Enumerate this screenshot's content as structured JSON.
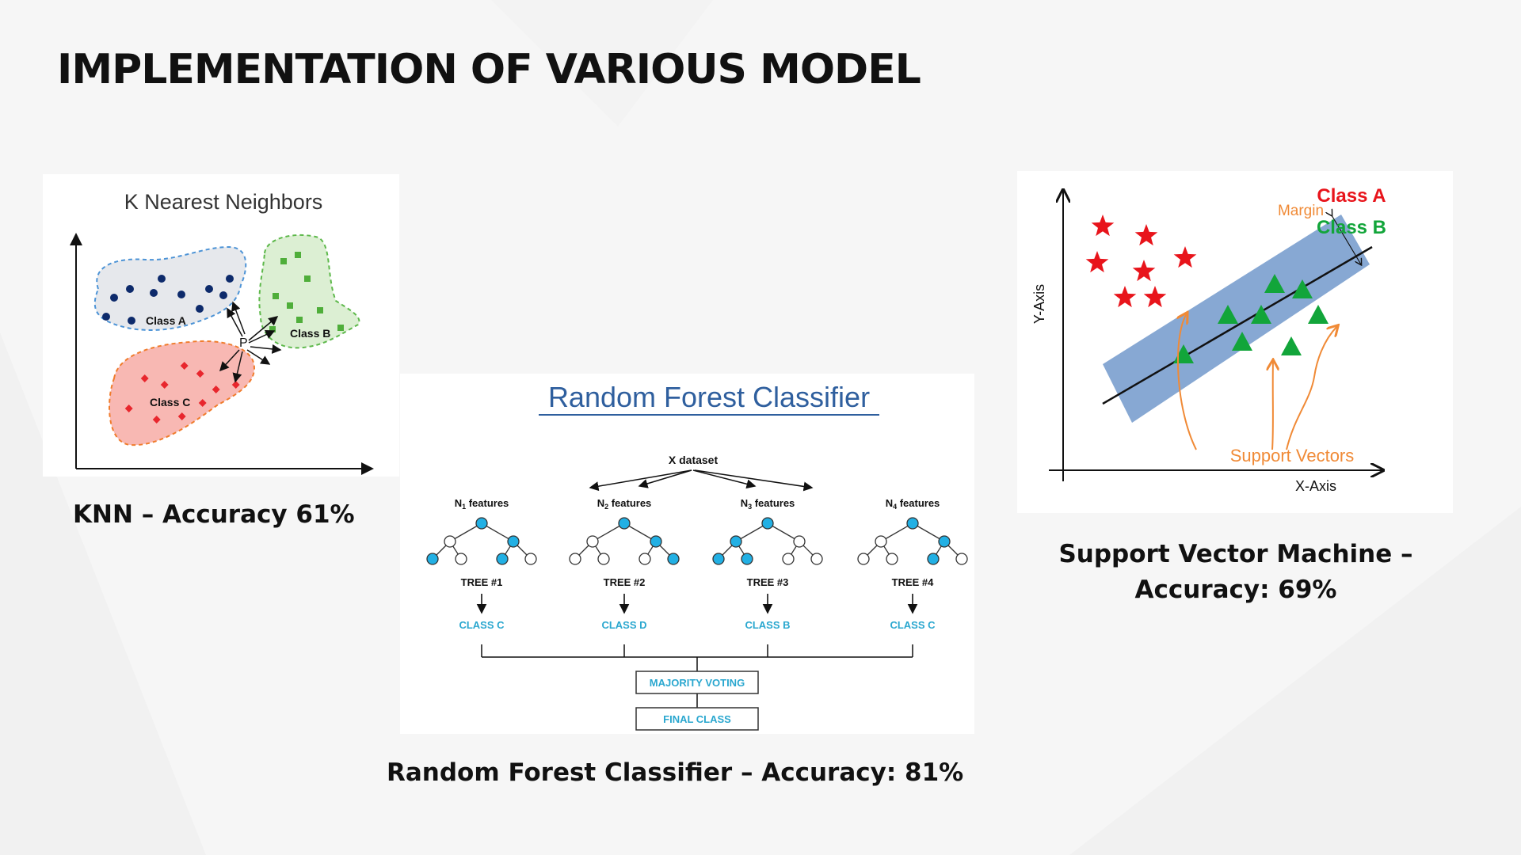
{
  "slide": {
    "title": "IMPLEMENTATION OF VARIOUS MODEL",
    "colors": {
      "background": "#f6f6f6",
      "title": "#111111"
    }
  },
  "knn": {
    "heading": "K Nearest Neighbors",
    "query_point": "P",
    "classes": [
      {
        "label": "Class A",
        "color": "#0d2a6b",
        "region": "#e6e8ec",
        "outline": "#4c93d6"
      },
      {
        "label": "Class B",
        "color": "#4fae3a",
        "region": "#dcefd3",
        "outline": "#5db84a"
      },
      {
        "label": "Class C",
        "color": "#e8262d",
        "region": "#f8b8b3",
        "outline": "#f07c2c"
      }
    ],
    "caption": "KNN – Accuracy 61%"
  },
  "random_forest": {
    "heading": "Random Forest Classifier",
    "heading_color": "#2f5f9e",
    "dataset": "X dataset",
    "trees": [
      {
        "features_prefix": "N",
        "features_sub": "1",
        "features_suffix": " features",
        "name": "TREE #1",
        "class": "CLASS C"
      },
      {
        "features_prefix": "N",
        "features_sub": "2",
        "features_suffix": " features",
        "name": "TREE #2",
        "class": "CLASS D"
      },
      {
        "features_prefix": "N",
        "features_sub": "3",
        "features_suffix": " features",
        "name": "TREE #3",
        "class": "CLASS B"
      },
      {
        "features_prefix": "N",
        "features_sub": "4",
        "features_suffix": " features",
        "name": "TREE #4",
        "class": "CLASS C"
      }
    ],
    "majority": "MAJORITY VOTING",
    "final": "FINAL CLASS",
    "node_color": "#22b0e4",
    "label_color": "#2aa7cf",
    "caption": "Random Forest Classifier – Accuracy: 81%"
  },
  "svm": {
    "class_a": "Class A",
    "class_b": "Class B",
    "class_a_color": "#e8141b",
    "class_b_color": "#12a53a",
    "margin": "Margin",
    "support_vectors": "Support Vectors",
    "annotation_color": "#f08a36",
    "margin_band_color": "#7a9fce",
    "x_axis": "X-Axis",
    "y_axis": "Y-Axis",
    "caption_line1": "Support Vector Machine –",
    "caption_line2": "Accuracy: 69%"
  }
}
